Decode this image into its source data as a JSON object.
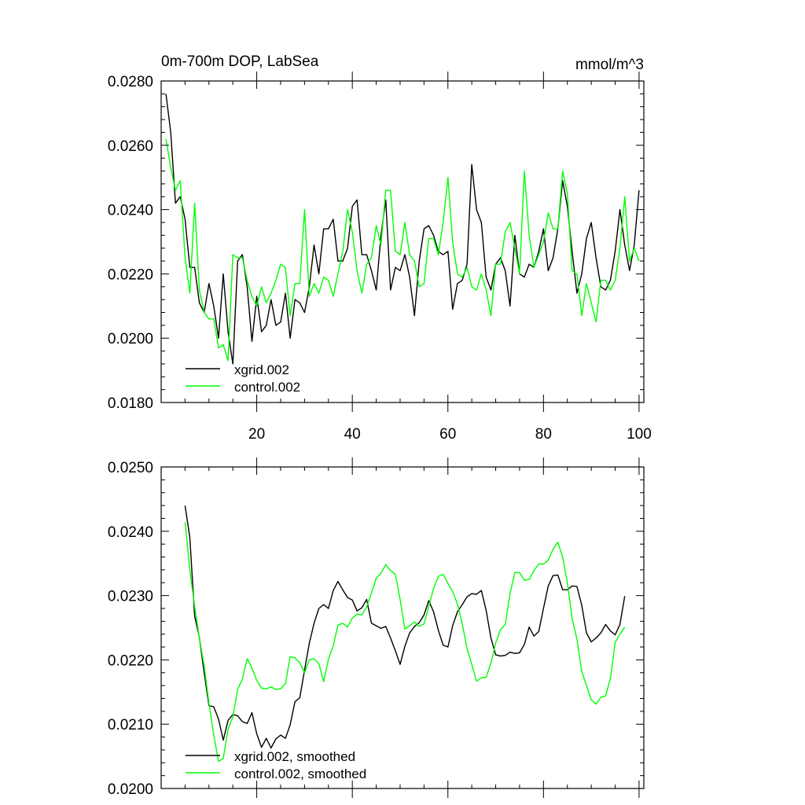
{
  "chart_data": [
    {
      "type": "line",
      "title": "0m-700m DOP, LabSea",
      "units": "mmol/m^3",
      "xlabel": "",
      "ylabel": "",
      "xlim": [
        0,
        101
      ],
      "ylim": [
        0.018,
        0.028
      ],
      "xticks": [
        20,
        40,
        60,
        80,
        100
      ],
      "xtick_labels": [
        "20",
        "40",
        "60",
        "80",
        "100"
      ],
      "yticks": [
        0.018,
        0.02,
        0.022,
        0.024,
        0.026,
        0.028
      ],
      "ytick_labels": [
        "0.0180",
        "0.0200",
        "0.0220",
        "0.0240",
        "0.0260",
        "0.0280"
      ],
      "legend_position": "bottom-left",
      "series": [
        {
          "name": "xgrid.002",
          "color": "#000000",
          "values": [
            0.0276,
            0.0264,
            0.0242,
            0.0244,
            0.0237,
            0.0222,
            0.0222,
            0.0211,
            0.0208,
            0.0217,
            0.021,
            0.02,
            0.022,
            0.0202,
            0.0192,
            0.0224,
            0.0226,
            0.0216,
            0.0199,
            0.0213,
            0.0202,
            0.0204,
            0.0212,
            0.0204,
            0.0205,
            0.0214,
            0.02,
            0.0212,
            0.0211,
            0.0208,
            0.0216,
            0.0229,
            0.022,
            0.0234,
            0.0234,
            0.0237,
            0.0224,
            0.0224,
            0.0228,
            0.0241,
            0.0243,
            0.0226,
            0.0226,
            0.0221,
            0.0215,
            0.0232,
            0.0243,
            0.0215,
            0.0222,
            0.0221,
            0.0226,
            0.0219,
            0.0207,
            0.0224,
            0.0234,
            0.0235,
            0.0232,
            0.0227,
            0.0226,
            0.0227,
            0.0209,
            0.0217,
            0.0218,
            0.0223,
            0.0254,
            0.024,
            0.0236,
            0.0219,
            0.0215,
            0.0223,
            0.0225,
            0.0221,
            0.021,
            0.0232,
            0.022,
            0.0219,
            0.0223,
            0.0222,
            0.0227,
            0.0234,
            0.0221,
            0.0225,
            0.0234,
            0.0249,
            0.0241,
            0.0227,
            0.0214,
            0.022,
            0.0231,
            0.0236,
            0.0225,
            0.0216,
            0.0215,
            0.0218,
            0.0227,
            0.024,
            0.0229,
            0.0221,
            0.0229,
            0.0246
          ]
        },
        {
          "name": "control.002",
          "color": "#00ff00",
          "values": [
            0.0262,
            0.0253,
            0.0246,
            0.0249,
            0.0225,
            0.0214,
            0.0242,
            0.0215,
            0.0208,
            0.0206,
            0.0206,
            0.0197,
            0.0198,
            0.0193,
            0.0226,
            0.0225,
            0.0225,
            0.0218,
            0.0213,
            0.021,
            0.0216,
            0.0211,
            0.0214,
            0.0218,
            0.0223,
            0.0222,
            0.0207,
            0.0217,
            0.0217,
            0.024,
            0.0213,
            0.0217,
            0.0214,
            0.0219,
            0.0218,
            0.0213,
            0.022,
            0.0227,
            0.024,
            0.0233,
            0.0221,
            0.0214,
            0.0223,
            0.0225,
            0.0235,
            0.0229,
            0.0246,
            0.0246,
            0.0227,
            0.0226,
            0.0236,
            0.0226,
            0.0224,
            0.0216,
            0.0217,
            0.0231,
            0.0231,
            0.0226,
            0.0236,
            0.025,
            0.023,
            0.022,
            0.0219,
            0.0222,
            0.0216,
            0.0215,
            0.022,
            0.0215,
            0.0207,
            0.0223,
            0.0223,
            0.0233,
            0.0236,
            0.0228,
            0.022,
            0.0252,
            0.0232,
            0.0222,
            0.0226,
            0.023,
            0.0239,
            0.0234,
            0.0234,
            0.0252,
            0.0245,
            0.0221,
            0.022,
            0.0207,
            0.0217,
            0.0211,
            0.0205,
            0.0218,
            0.0218,
            0.0215,
            0.0218,
            0.0228,
            0.0244,
            0.0224,
            0.0228,
            0.0224
          ]
        }
      ]
    },
    {
      "type": "line",
      "title": "",
      "xlabel": "",
      "ylabel": "",
      "xlim": [
        0,
        101
      ],
      "ylim": [
        0.02,
        0.025
      ],
      "xticks": [
        20,
        40,
        60,
        80,
        100
      ],
      "xtick_labels": [],
      "yticks": [
        0.02,
        0.021,
        0.022,
        0.023,
        0.024,
        0.025
      ],
      "ytick_labels": [
        "0.0200",
        "0.0210",
        "0.0220",
        "0.0230",
        "0.0240",
        "0.0250"
      ],
      "legend_position": "bottom-left",
      "series": [
        {
          "name": "xgrid.002, smoothed",
          "color": "#000000",
          "x_start": 5,
          "values": [
            0.0244,
            0.0239,
            0.02268,
            0.02235,
            0.0218,
            0.02129,
            0.02127,
            0.02108,
            0.02075,
            0.02106,
            0.02115,
            0.02113,
            0.02104,
            0.02101,
            0.02118,
            0.02085,
            0.02064,
            0.02078,
            0.02063,
            0.02077,
            0.02083,
            0.02078,
            0.02099,
            0.02135,
            0.02141,
            0.02184,
            0.02226,
            0.02257,
            0.0228,
            0.02286,
            0.0228,
            0.02308,
            0.02322,
            0.02309,
            0.02297,
            0.02293,
            0.02276,
            0.02281,
            0.02294,
            0.02257,
            0.02253,
            0.02249,
            0.02252,
            0.02234,
            0.02214,
            0.02193,
            0.02221,
            0.02242,
            0.02252,
            0.02258,
            0.0227,
            0.02292,
            0.02275,
            0.02246,
            0.02223,
            0.0222,
            0.02253,
            0.02275,
            0.02286,
            0.02298,
            0.02303,
            0.02302,
            0.02308,
            0.02277,
            0.02234,
            0.02208,
            0.02206,
            0.02207,
            0.02212,
            0.0221,
            0.02211,
            0.02224,
            0.02251,
            0.02237,
            0.02244,
            0.0228,
            0.02315,
            0.02331,
            0.02332,
            0.02309,
            0.02309,
            0.02315,
            0.02314,
            0.02285,
            0.02242,
            0.02228,
            0.02234,
            0.02242,
            0.02255,
            0.02245,
            0.02239,
            0.02255,
            0.02299
          ]
        },
        {
          "name": "control.002, smoothed",
          "color": "#00ff00",
          "x_start": 5,
          "values": [
            0.02414,
            0.0234,
            0.02283,
            0.02234,
            0.02191,
            0.02133,
            0.02083,
            0.02042,
            0.02047,
            0.02092,
            0.02112,
            0.02154,
            0.0217,
            0.02202,
            0.02187,
            0.02168,
            0.02156,
            0.02155,
            0.02158,
            0.02154,
            0.02155,
            0.02163,
            0.02205,
            0.02203,
            0.02196,
            0.0218,
            0.022,
            0.02202,
            0.02194,
            0.02166,
            0.02201,
            0.02222,
            0.02254,
            0.02257,
            0.02251,
            0.02265,
            0.02271,
            0.0227,
            0.02282,
            0.02304,
            0.02327,
            0.02335,
            0.02348,
            0.02339,
            0.02333,
            0.02294,
            0.02248,
            0.02253,
            0.02259,
            0.02252,
            0.02256,
            0.02283,
            0.02311,
            0.0233,
            0.02333,
            0.02319,
            0.02306,
            0.02287,
            0.02256,
            0.02218,
            0.02193,
            0.02167,
            0.02172,
            0.02173,
            0.02195,
            0.02226,
            0.02247,
            0.02255,
            0.02303,
            0.02336,
            0.02336,
            0.02324,
            0.02325,
            0.02339,
            0.02349,
            0.02349,
            0.02355,
            0.02372,
            0.02383,
            0.0236,
            0.0232,
            0.02264,
            0.02232,
            0.02182,
            0.0216,
            0.02138,
            0.02131,
            0.02142,
            0.02144,
            0.02171,
            0.02227,
            0.0224,
            0.02251
          ]
        }
      ]
    }
  ]
}
